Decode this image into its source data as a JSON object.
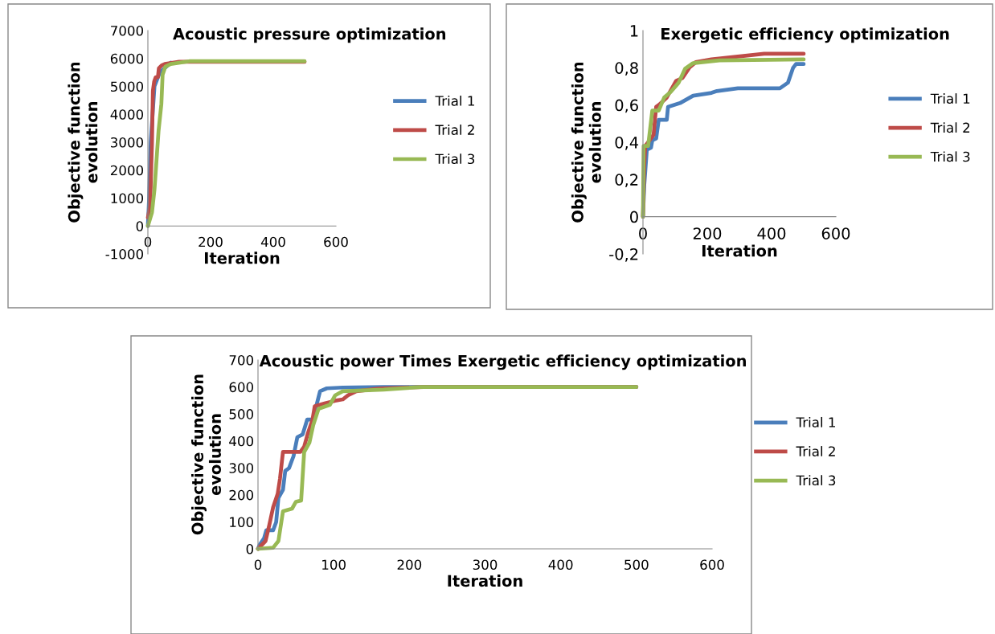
{
  "chart_data": [
    {
      "type": "line",
      "title": "Acoustic pressure optimization",
      "xlabel": "Iteration",
      "ylabel": "Objective function\nevolution",
      "xlim": [
        0,
        600
      ],
      "xticks": [
        0,
        200,
        400,
        600
      ],
      "ylim": [
        -1000,
        7000
      ],
      "yticks": [
        -1000,
        0,
        1000,
        2000,
        3000,
        4000,
        5000,
        6000,
        7000
      ],
      "legend": "right",
      "grid": false,
      "series": [
        {
          "name": "Trial 1",
          "color": "#4a7ebb",
          "x": [
            0,
            4,
            9,
            21,
            38,
            73
          ],
          "values": [
            0,
            1000,
            3000,
            5000,
            5500,
            5850
          ]
        },
        {
          "name": "Trial 2",
          "color": "#be4b48",
          "x": [
            0,
            7,
            13,
            16,
            20,
            25,
            32,
            35,
            44,
            54,
            100,
            500
          ],
          "values": [
            300,
            720,
            2930,
            4840,
            5170,
            5330,
            5330,
            5650,
            5750,
            5800,
            5880,
            5880
          ]
        },
        {
          "name": "Trial 3",
          "color": "#98b954",
          "x": [
            0,
            13,
            21,
            34,
            43,
            47,
            56,
            73,
            132,
            500
          ],
          "values": [
            0,
            480,
            1300,
            3400,
            4370,
            5420,
            5710,
            5800,
            5900,
            5900
          ]
        }
      ]
    },
    {
      "type": "line",
      "title": "Exergetic efficiency optimization",
      "xlabel": "Iteration",
      "ylabel": "Objective function\nevolution",
      "xlim": [
        0,
        600
      ],
      "xticks": [
        0,
        200,
        400,
        600
      ],
      "ylim": [
        -0.2,
        1
      ],
      "yticks": [
        {
          "value": -0.2,
          "label": "-0,2"
        },
        {
          "value": 0,
          "label": "0"
        },
        {
          "value": 0.2,
          "label": "0,2"
        },
        {
          "value": 0.4,
          "label": "0,4"
        },
        {
          "value": 0.6,
          "label": "0,6"
        },
        {
          "value": 0.8,
          "label": "0,8"
        },
        {
          "value": 1,
          "label": "1"
        }
      ],
      "legend": "right",
      "grid": false,
      "series": [
        {
          "name": "Trial 1",
          "color": "#4a7ebb",
          "x": [
            0,
            4,
            12,
            25,
            29,
            41,
            49,
            74,
            78,
            115,
            156,
            213,
            230,
            295,
            426,
            451,
            467,
            476,
            500
          ],
          "values": [
            0,
            0.17,
            0.36,
            0.37,
            0.41,
            0.42,
            0.52,
            0.52,
            0.59,
            0.61,
            0.65,
            0.665,
            0.675,
            0.69,
            0.69,
            0.72,
            0.8,
            0.82,
            0.82
          ]
        },
        {
          "name": "Trial 2",
          "color": "#be4b48",
          "x": [
            0,
            4,
            7,
            16,
            33,
            41,
            49,
            74,
            90,
            103,
            123,
            144,
            164,
            213,
            295,
            377,
            500
          ],
          "values": [
            0,
            0.28,
            0.38,
            0.4,
            0.44,
            0.59,
            0.6,
            0.64,
            0.69,
            0.73,
            0.745,
            0.8,
            0.83,
            0.845,
            0.86,
            0.875,
            0.875
          ]
        },
        {
          "name": "Trial 3",
          "color": "#98b954",
          "x": [
            0,
            2,
            16,
            29,
            49,
            66,
            86,
            111,
            131,
            156,
            238,
            500
          ],
          "values": [
            0,
            0.38,
            0.38,
            0.57,
            0.57,
            0.64,
            0.67,
            0.72,
            0.795,
            0.825,
            0.84,
            0.845
          ]
        }
      ]
    },
    {
      "type": "line",
      "title": "Acoustic power Times Exergetic efficiency optimization",
      "xlabel": "Iteration",
      "ylabel": "Objective function\nevolution",
      "xlim": [
        0,
        600
      ],
      "xticks": [
        0,
        100,
        200,
        300,
        400,
        500,
        600
      ],
      "ylim": [
        0,
        700
      ],
      "yticks": [
        0,
        100,
        200,
        300,
        400,
        500,
        600,
        700
      ],
      "legend": "right",
      "grid": false,
      "series": [
        {
          "name": "Trial 1",
          "color": "#4a7ebb",
          "x": [
            0,
            2,
            8,
            11,
            20,
            24,
            27,
            33,
            36,
            41,
            47,
            52,
            59,
            65,
            73,
            77,
            82,
            91,
            112,
            166,
            500
          ],
          "values": [
            0,
            14,
            39,
            69,
            69,
            99,
            189,
            219,
            289,
            299,
            344,
            414,
            424,
            479,
            479,
            529,
            584,
            595,
            598,
            600,
            600
          ]
        },
        {
          "name": "Trial 2",
          "color": "#be4b48",
          "x": [
            0,
            10,
            15,
            20,
            26,
            29,
            33,
            56,
            61,
            66,
            72,
            75,
            88,
            102,
            112,
            119,
            130,
            159,
            219,
            500
          ],
          "values": [
            0,
            29,
            89,
            154,
            204,
            259,
            359,
            359,
            379,
            429,
            479,
            529,
            539,
            549,
            554,
            569,
            584,
            594,
            600,
            600
          ]
        },
        {
          "name": "Trial 3",
          "color": "#98b954",
          "x": [
            0,
            20,
            27,
            33,
            45,
            50,
            57,
            61,
            68,
            73,
            80,
            95,
            102,
            112,
            166,
            215,
            500
          ],
          "values": [
            0,
            4,
            29,
            139,
            149,
            174,
            179,
            359,
            394,
            459,
            519,
            534,
            569,
            584,
            590,
            600,
            600
          ]
        }
      ]
    }
  ]
}
